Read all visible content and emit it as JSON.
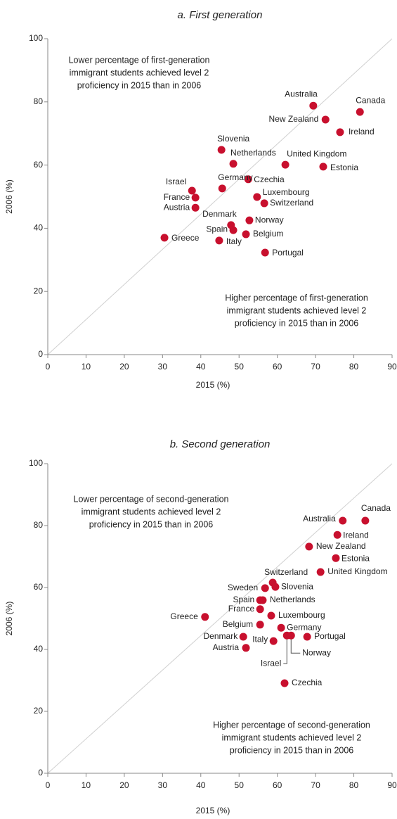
{
  "chart_data": [
    {
      "type": "scatter",
      "title": "a. First generation",
      "xlabel": "2015 (%)",
      "ylabel": "2006 (%)",
      "annotations": [
        [
          "Lower percentage of first-generation",
          "immigrant students achieved level 2",
          "proficiency in 2015 than in 2006"
        ],
        [
          "Higher percentage of first-generation",
          "immigrant students achieved level 2",
          "proficiency in 2015 than in 2006"
        ]
      ],
      "xlim": [
        0,
        90
      ],
      "ylim": [
        0,
        100
      ],
      "xticks": [
        0,
        10,
        20,
        30,
        40,
        50,
        60,
        70,
        80,
        90
      ],
      "yticks": [
        0,
        20,
        40,
        60,
        80,
        100
      ],
      "series": [
        {
          "color": "#c8102e",
          "labels": [
            "Australia",
            "Canada",
            "New Zealand",
            "Ireland",
            "Slovenia",
            "Netherlands",
            "United Kingdom",
            "Estonia",
            "Czechia",
            "Germany",
            "Israel",
            "France",
            "Luxembourg",
            "Switzerland",
            "Austria",
            "Denmark",
            "Norway",
            "Spain",
            "Belgium",
            "Greece",
            "Italy",
            "Portugal"
          ],
          "x": [
            69.4,
            81.6,
            72.6,
            76.4,
            45.4,
            48.5,
            62.1,
            72.0,
            52.4,
            45.6,
            37.7,
            38.6,
            54.7,
            56.6,
            38.6,
            47.9,
            52.7,
            48.5,
            51.8,
            30.5,
            44.8,
            56.8
          ],
          "values": [
            78.8,
            76.8,
            74.4,
            70.4,
            64.8,
            60.4,
            60.1,
            59.5,
            55.5,
            52.6,
            51.9,
            49.7,
            49.9,
            47.9,
            46.5,
            41.0,
            42.5,
            39.4,
            38.1,
            37.0,
            36.1,
            32.3
          ]
        }
      ]
    },
    {
      "type": "scatter",
      "title": "b. Second generation",
      "xlabel": "2015 (%)",
      "ylabel": "2006 (%)",
      "annotations": [
        [
          "Lower percentage of second-generation",
          "immigrant students achieved level 2",
          "proficiency in 2015 than in 2006"
        ],
        [
          "Higher percentage of second-generation",
          "immigrant students achieved level 2",
          "proficiency in 2015 than in 2006"
        ]
      ],
      "xlim": [
        0,
        90
      ],
      "ylim": [
        0,
        100
      ],
      "xticks": [
        0,
        10,
        20,
        30,
        40,
        50,
        60,
        70,
        80,
        90
      ],
      "yticks": [
        0,
        20,
        40,
        60,
        80,
        100
      ],
      "series": [
        {
          "color": "#c8102e",
          "labels": [
            "Australia",
            "Canada",
            "Ireland",
            "New Zealand",
            "Estonia",
            "United Kingdom",
            "Switzerland",
            "Slovenia",
            "Sweden",
            "Spain",
            "Netherlands",
            "France",
            "Luxembourg",
            "Greece",
            "Belgium",
            "Germany",
            "Portugal",
            "Denmark",
            "Israel",
            "Norway",
            "Italy",
            "Austria",
            "Czechia"
          ],
          "x": [
            77.1,
            83.0,
            75.7,
            68.3,
            75.3,
            71.3,
            58.8,
            59.5,
            56.8,
            55.5,
            56.2,
            55.5,
            58.4,
            41.1,
            55.5,
            61.0,
            67.8,
            51.1,
            62.5,
            63.6,
            59.0,
            51.8,
            61.9
          ],
          "values": [
            81.6,
            81.6,
            77.0,
            73.2,
            69.5,
            65.0,
            61.6,
            60.2,
            59.8,
            55.9,
            55.9,
            53.0,
            50.9,
            50.5,
            48.0,
            47.0,
            44.1,
            44.1,
            44.5,
            44.5,
            42.7,
            40.5,
            29.1
          ]
        }
      ]
    }
  ]
}
